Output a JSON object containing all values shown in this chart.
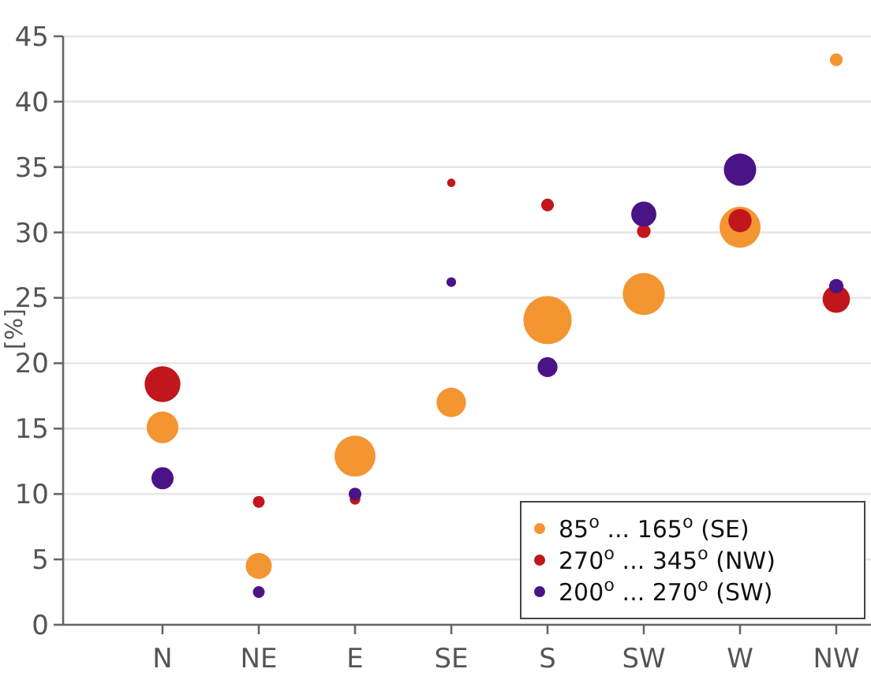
{
  "chart_data": {
    "type": "bubble",
    "ylabel": "[%]",
    "categories": [
      "N",
      "NE",
      "E",
      "SE",
      "S",
      "SW",
      "W",
      "NW"
    ],
    "ylim": [
      0,
      45
    ],
    "yticks": [
      0,
      5,
      10,
      15,
      20,
      25,
      30,
      35,
      40,
      45
    ],
    "grid": "y",
    "legend": "bottom right",
    "series": [
      {
        "name": "85$^{o}$ ... 165$^{o}$ (SE)",
        "color": "#f39530",
        "values": [
          15.1,
          4.5,
          12.9,
          17.0,
          23.3,
          25.3,
          30.4,
          43.2
        ],
        "sizes": [
          0.43,
          0.29,
          0.72,
          0.37,
          1,
          0.76,
          0.72,
          0.07
        ]
      },
      {
        "name": "270$^{o}$ ... 345$^{o}$ (NW)",
        "color": "#c0161c",
        "values": [
          18.4,
          9.4,
          9.6,
          33.8,
          32.1,
          30.1,
          30.9,
          24.9
        ],
        "sizes": [
          0.55,
          0.06,
          0.05,
          0.03,
          0.07,
          0.08,
          0.23,
          0.32
        ]
      },
      {
        "name": "200$^{o}$ ... 270$^{o}$ (SW)",
        "color": "#4a1486",
        "values": [
          11.2,
          2.5,
          10.0,
          26.2,
          19.7,
          31.4,
          34.8,
          25.9
        ],
        "sizes": [
          0.21,
          0.06,
          0.07,
          0.04,
          0.17,
          0.27,
          0.45,
          0.09
        ]
      }
    ]
  }
}
